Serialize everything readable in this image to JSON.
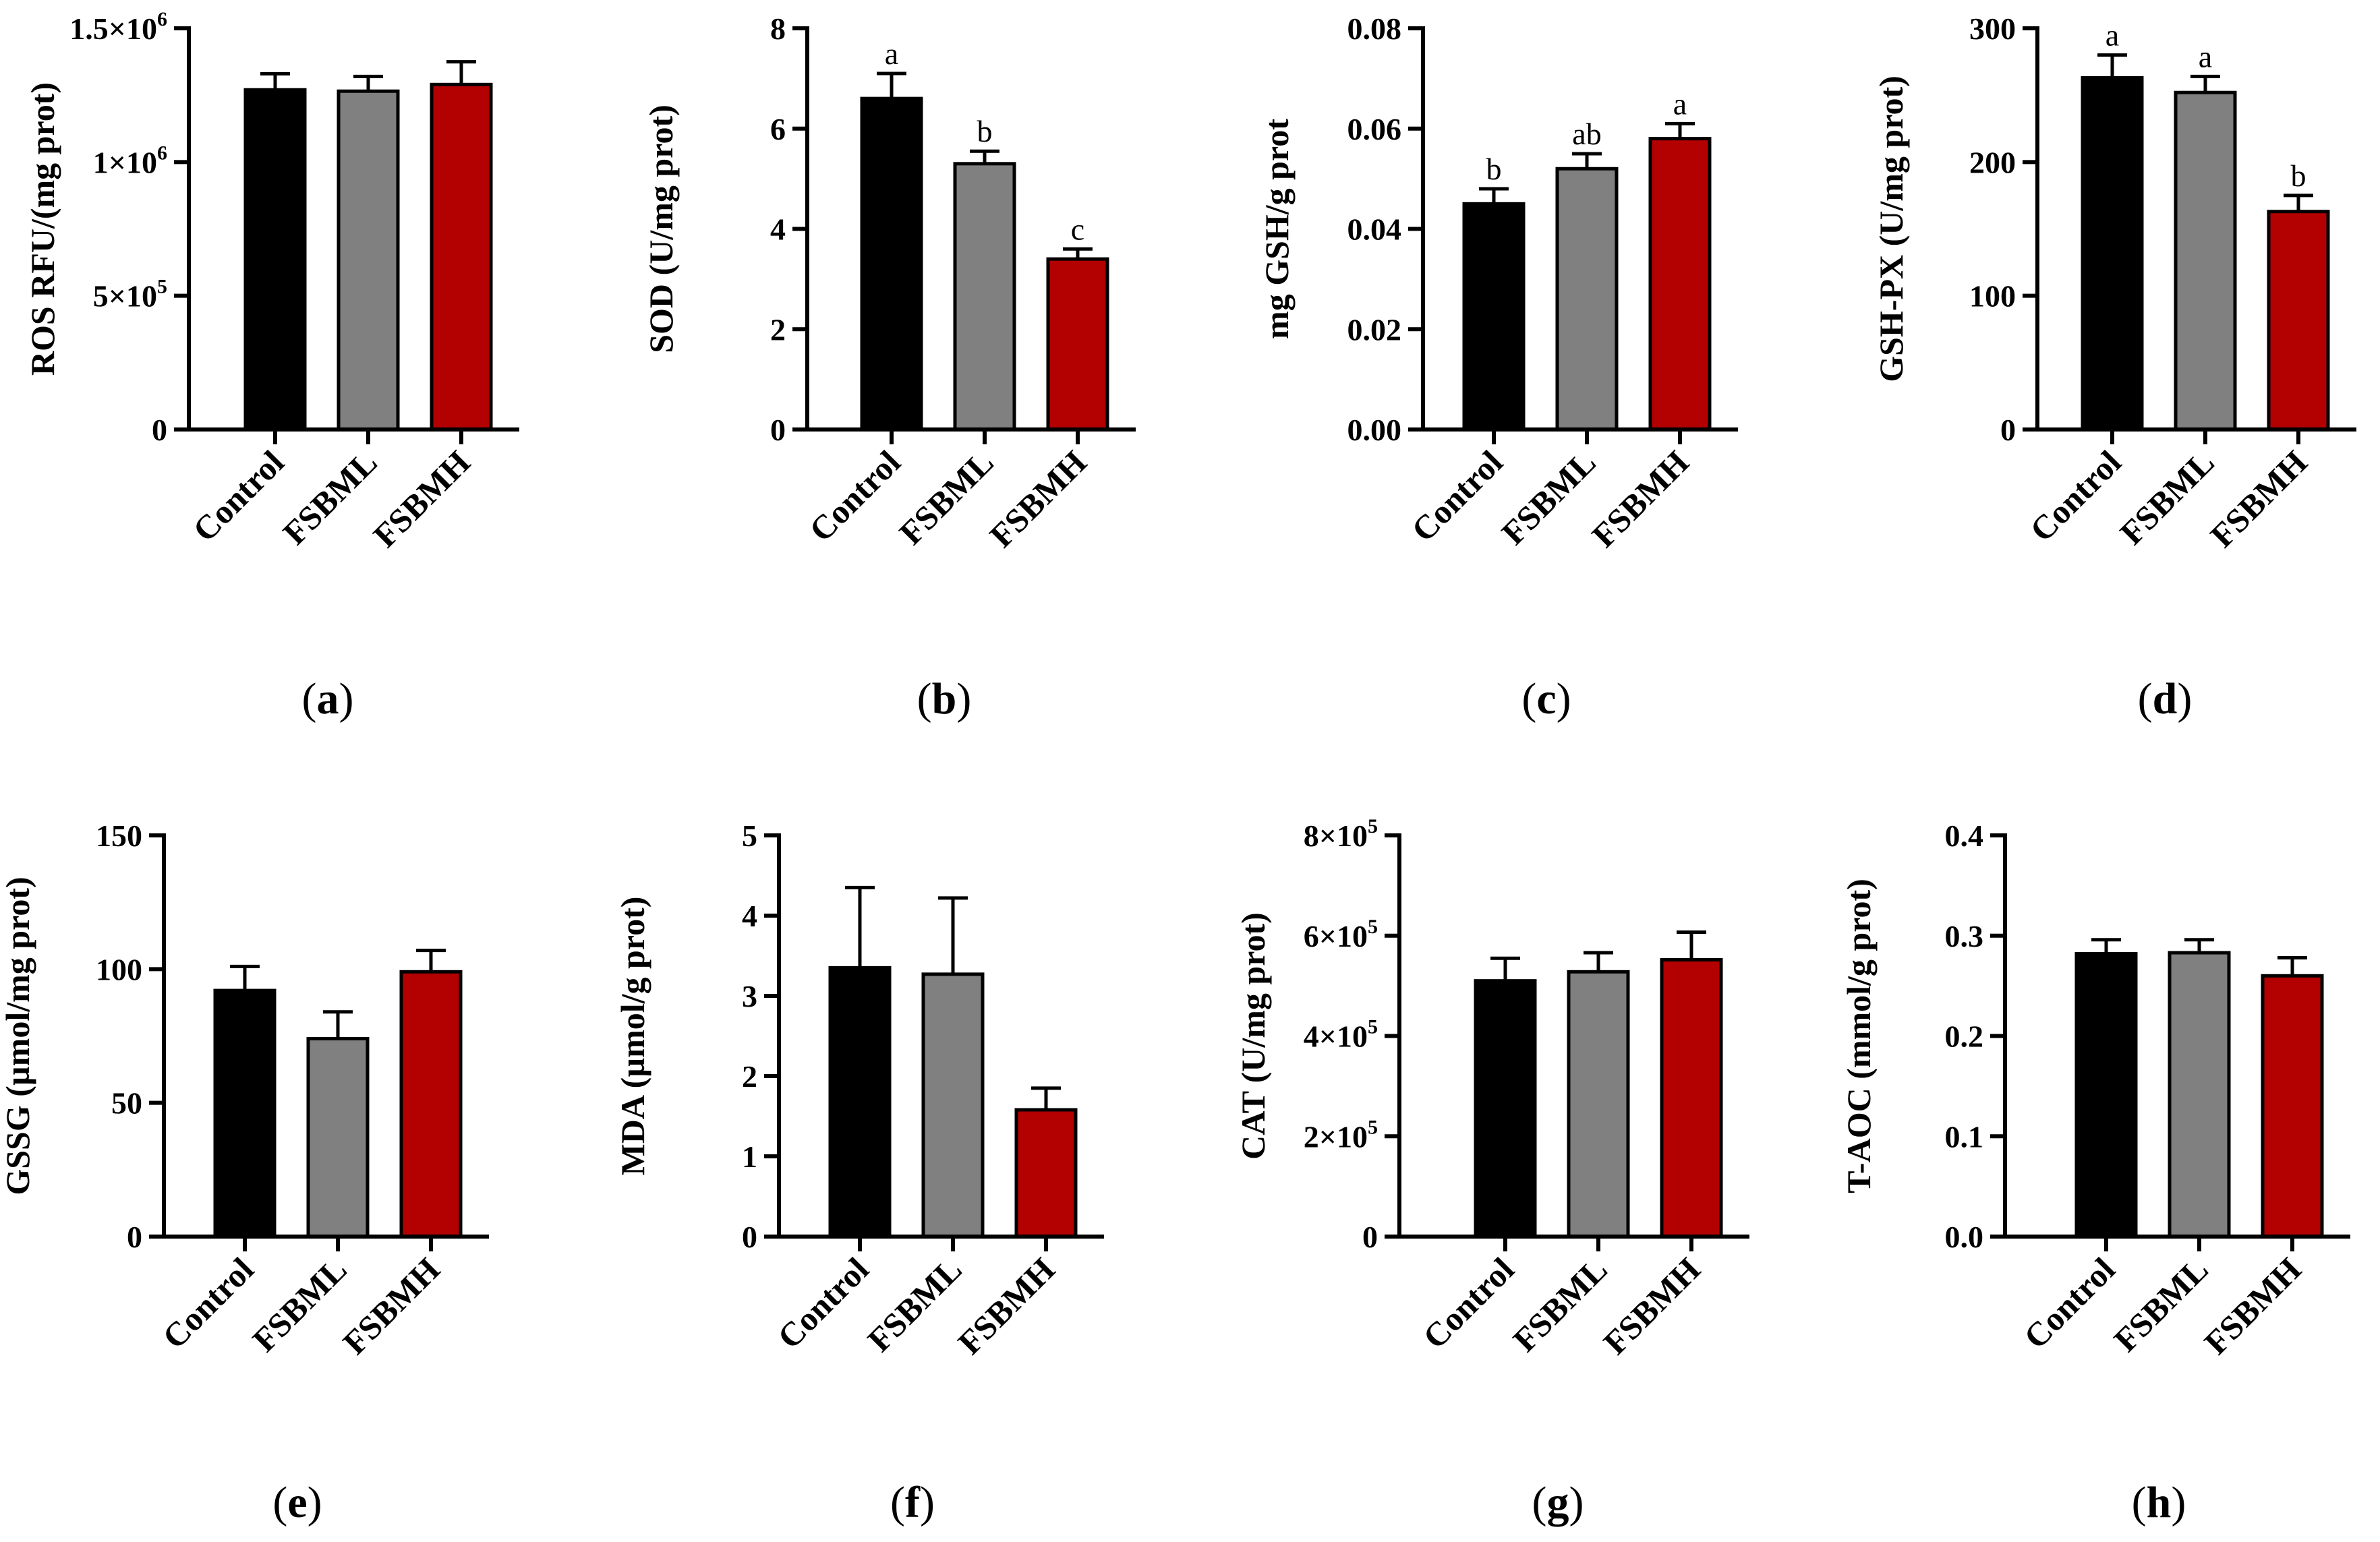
{
  "figure": {
    "categories": [
      "Control",
      "FSBML",
      "FSBMH"
    ],
    "colors": {
      "Control": "#000000",
      "FSBML": "#808080",
      "FSBMH": "#b30000",
      "axis": "#000000"
    }
  },
  "chart_data": [
    {
      "panel": "a",
      "type": "bar",
      "categories": [
        "Control",
        "FSBML",
        "FSBMH"
      ],
      "values": [
        1270000,
        1265000,
        1290000
      ],
      "errors": [
        60000,
        55000,
        85000
      ],
      "significance": [
        "",
        "",
        ""
      ],
      "ylabel": "ROS RFU/(mg prot)",
      "ylim": [
        0,
        1500000
      ],
      "yticks": [
        {
          "value": 0,
          "label": "0",
          "sup": ""
        },
        {
          "value": 500000,
          "label": "5×10",
          "sup": "5"
        },
        {
          "value": 1000000,
          "label": "1×10",
          "sup": "6"
        },
        {
          "value": 1500000,
          "label": "1.5×10",
          "sup": "6"
        }
      ]
    },
    {
      "panel": "b",
      "type": "bar",
      "categories": [
        "Control",
        "FSBML",
        "FSBMH"
      ],
      "values": [
        6.6,
        5.3,
        3.4
      ],
      "errors": [
        0.5,
        0.25,
        0.2
      ],
      "significance": [
        "a",
        "b",
        "c"
      ],
      "ylabel": "SOD (U/mg prot)",
      "ylim": [
        0,
        8
      ],
      "yticks": [
        {
          "value": 0,
          "label": "0",
          "sup": ""
        },
        {
          "value": 2,
          "label": "2",
          "sup": ""
        },
        {
          "value": 4,
          "label": "4",
          "sup": ""
        },
        {
          "value": 6,
          "label": "6",
          "sup": ""
        },
        {
          "value": 8,
          "label": "8",
          "sup": ""
        }
      ]
    },
    {
      "panel": "c",
      "type": "bar",
      "categories": [
        "Control",
        "FSBML",
        "FSBMH"
      ],
      "values": [
        0.045,
        0.052,
        0.058
      ],
      "errors": [
        0.003,
        0.003,
        0.003
      ],
      "significance": [
        "b",
        "ab",
        "a"
      ],
      "ylabel": "mg GSH/g prot",
      "ylim": [
        0,
        0.08
      ],
      "yticks": [
        {
          "value": 0,
          "label": "0.00",
          "sup": ""
        },
        {
          "value": 0.02,
          "label": "0.02",
          "sup": ""
        },
        {
          "value": 0.04,
          "label": "0.04",
          "sup": ""
        },
        {
          "value": 0.06,
          "label": "0.06",
          "sup": ""
        },
        {
          "value": 0.08,
          "label": "0.08",
          "sup": ""
        }
      ]
    },
    {
      "panel": "d",
      "type": "bar",
      "categories": [
        "Control",
        "FSBML",
        "FSBMH"
      ],
      "values": [
        263,
        252,
        163
      ],
      "errors": [
        17,
        12,
        12
      ],
      "significance": [
        "a",
        "a",
        "b"
      ],
      "ylabel": "GSH-PX (U/mg prot)",
      "ylim": [
        0,
        300
      ],
      "yticks": [
        {
          "value": 0,
          "label": "0",
          "sup": ""
        },
        {
          "value": 100,
          "label": "100",
          "sup": ""
        },
        {
          "value": 200,
          "label": "200",
          "sup": ""
        },
        {
          "value": 300,
          "label": "300",
          "sup": ""
        }
      ]
    },
    {
      "panel": "e",
      "type": "bar",
      "categories": [
        "Control",
        "FSBML",
        "FSBMH"
      ],
      "values": [
        92,
        74,
        99
      ],
      "errors": [
        9,
        10,
        8
      ],
      "significance": [
        "",
        "",
        ""
      ],
      "ylabel": "GSSG (µmol/mg prot)",
      "ylim": [
        0,
        150
      ],
      "yticks": [
        {
          "value": 0,
          "label": "0",
          "sup": ""
        },
        {
          "value": 50,
          "label": "50",
          "sup": ""
        },
        {
          "value": 100,
          "label": "100",
          "sup": ""
        },
        {
          "value": 150,
          "label": "150",
          "sup": ""
        }
      ]
    },
    {
      "panel": "f",
      "type": "bar",
      "categories": [
        "Control",
        "FSBML",
        "FSBMH"
      ],
      "values": [
        3.35,
        3.27,
        1.58
      ],
      "errors": [
        1.0,
        0.95,
        0.27
      ],
      "significance": [
        "",
        "",
        ""
      ],
      "ylabel": "MDA (µmol/g prot)",
      "ylim": [
        0,
        5
      ],
      "yticks": [
        {
          "value": 0,
          "label": "0",
          "sup": ""
        },
        {
          "value": 1,
          "label": "1",
          "sup": ""
        },
        {
          "value": 2,
          "label": "2",
          "sup": ""
        },
        {
          "value": 3,
          "label": "3",
          "sup": ""
        },
        {
          "value": 4,
          "label": "4",
          "sup": ""
        },
        {
          "value": 5,
          "label": "5",
          "sup": ""
        }
      ]
    },
    {
      "panel": "g",
      "type": "bar",
      "categories": [
        "Control",
        "FSBML",
        "FSBMH"
      ],
      "values": [
        510000,
        528000,
        552000
      ],
      "errors": [
        45000,
        38000,
        55000
      ],
      "significance": [
        "",
        "",
        ""
      ],
      "ylabel": "CAT (U/mg prot)",
      "ylim": [
        0,
        800000
      ],
      "yticks": [
        {
          "value": 0,
          "label": "0",
          "sup": ""
        },
        {
          "value": 200000,
          "label": "2×10",
          "sup": "5"
        },
        {
          "value": 400000,
          "label": "4×10",
          "sup": "5"
        },
        {
          "value": 600000,
          "label": "6×10",
          "sup": "5"
        },
        {
          "value": 800000,
          "label": "8×10",
          "sup": "5"
        }
      ]
    },
    {
      "panel": "h",
      "type": "bar",
      "categories": [
        "Control",
        "FSBML",
        "FSBMH"
      ],
      "values": [
        0.282,
        0.283,
        0.26
      ],
      "errors": [
        0.014,
        0.013,
        0.018
      ],
      "significance": [
        "",
        "",
        ""
      ],
      "ylabel": "T-AOC (mmol/g prot)",
      "ylim": [
        0,
        0.4
      ],
      "yticks": [
        {
          "value": 0,
          "label": "0.0",
          "sup": ""
        },
        {
          "value": 0.1,
          "label": "0.1",
          "sup": ""
        },
        {
          "value": 0.2,
          "label": "0.2",
          "sup": ""
        },
        {
          "value": 0.3,
          "label": "0.3",
          "sup": ""
        },
        {
          "value": 0.4,
          "label": "0.4",
          "sup": ""
        }
      ]
    }
  ]
}
